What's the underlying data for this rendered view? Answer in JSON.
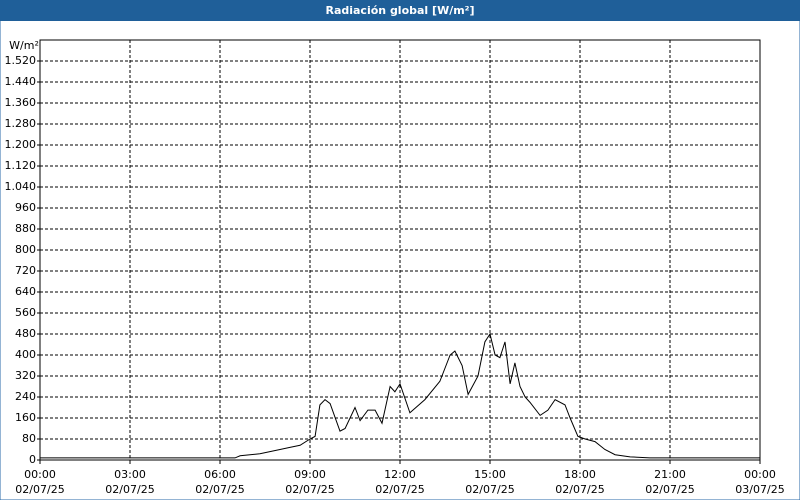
{
  "chart_data": {
    "type": "line",
    "title": "Radiación global [W/m²]",
    "y_unit": "W/m²",
    "xlim": [
      0,
      24
    ],
    "ylim": [
      0,
      1600
    ],
    "xticks": [
      {
        "value": 0,
        "label": "00:00",
        "date": "02/07/25"
      },
      {
        "value": 3,
        "label": "03:00",
        "date": "02/07/25"
      },
      {
        "value": 6,
        "label": "06:00",
        "date": "02/07/25"
      },
      {
        "value": 9,
        "label": "09:00",
        "date": "02/07/25"
      },
      {
        "value": 12,
        "label": "12:00",
        "date": "02/07/25"
      },
      {
        "value": 15,
        "label": "15:00",
        "date": "02/07/25"
      },
      {
        "value": 18,
        "label": "18:00",
        "date": "02/07/25"
      },
      {
        "value": 21,
        "label": "21:00",
        "date": "02/07/25"
      },
      {
        "value": 24,
        "label": "00:00",
        "date": "03/07/25"
      }
    ],
    "yticks": [
      0,
      80,
      160,
      240,
      320,
      400,
      480,
      560,
      640,
      720,
      800,
      880,
      960,
      {
        "value": 1040,
        "label": "1.040"
      },
      {
        "value": 1120,
        "label": "1.120"
      },
      {
        "value": 1200,
        "label": "1.200"
      },
      {
        "value": 1280,
        "label": "1.280"
      },
      {
        "value": 1360,
        "label": "1.360"
      },
      {
        "value": 1440,
        "label": "1.440"
      },
      {
        "value": 1520,
        "label": "1.520"
      }
    ],
    "grid": true,
    "color": "#000000",
    "x": [
      0,
      6.5,
      6.67,
      7.33,
      8,
      8.33,
      8.67,
      9,
      9.17,
      9.33,
      9.5,
      9.67,
      10,
      10.17,
      10.5,
      10.67,
      10.93,
      11.17,
      11.4,
      11.67,
      11.83,
      12,
      12.33,
      12.83,
      13.33,
      13.67,
      13.83,
      14.07,
      14.27,
      14.6,
      14.83,
      15,
      15.17,
      15.33,
      15.5,
      15.67,
      15.83,
      16,
      16.17,
      16.33,
      16.67,
      16.93,
      17.17,
      17.5,
      17.67,
      17.93,
      18.17,
      18.5,
      18.83,
      19.17,
      19.67,
      20.33,
      24
    ],
    "values": [
      8,
      8,
      16,
      24,
      40,
      48,
      56,
      80,
      90,
      210,
      230,
      215,
      110,
      120,
      200,
      150,
      190,
      190,
      140,
      280,
      260,
      290,
      180,
      230,
      300,
      400,
      415,
      360,
      250,
      320,
      450,
      480,
      400,
      390,
      450,
      290,
      370,
      280,
      240,
      220,
      170,
      190,
      230,
      210,
      160,
      90,
      80,
      70,
      40,
      20,
      12,
      8,
      8
    ]
  }
}
